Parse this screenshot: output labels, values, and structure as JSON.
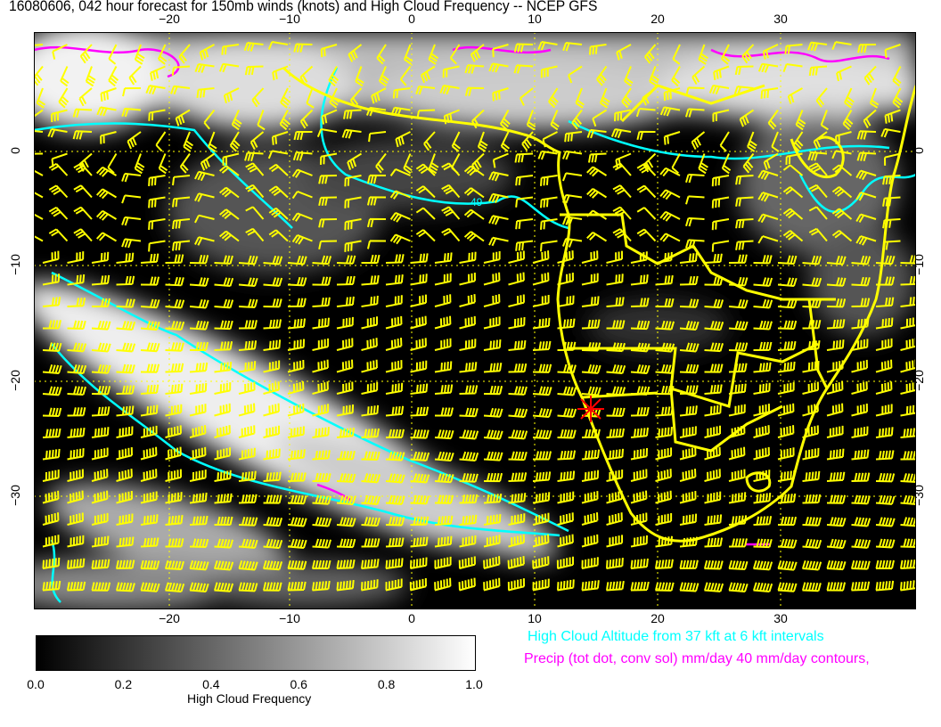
{
  "title": "16080606, 042 hour forecast for 150mb winds (knots) and High Cloud Frequency -- NCEP GFS",
  "map": {
    "lon_ticks": [
      "−20",
      "−10",
      "0",
      "10",
      "20",
      "30"
    ],
    "lat_ticks": [
      "0",
      "−10",
      "−20",
      "−30"
    ],
    "lon_range": [
      -31,
      41
    ],
    "lat_range": [
      10.4,
      -39.8
    ],
    "contour_label": "49",
    "marker_color": "#ff0000",
    "wind_barb_color": "#ffff00",
    "coastline_color": "#ffff00",
    "cloud_altitude_color": "#00ffff",
    "precip_color": "#ff00ff"
  },
  "colorbar": {
    "labels": [
      "0.0",
      "0.2",
      "0.4",
      "0.6",
      "0.8",
      "1.0"
    ],
    "title": "High Cloud Frequency",
    "range": [
      0,
      1
    ]
  },
  "legend": {
    "cloud_altitude": "High Cloud Altitude from 37 kft at 6 kft intervals",
    "precip": "Precip (tot dot, conv sol) mm/day 40 mm/day contours,"
  }
}
